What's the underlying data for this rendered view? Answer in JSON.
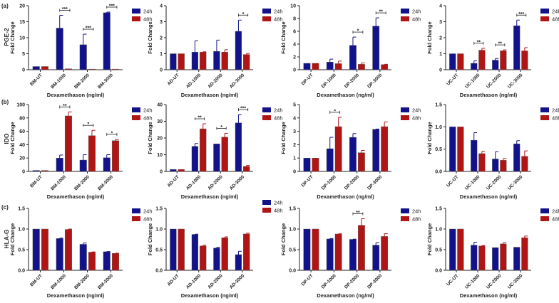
{
  "rows": [
    {
      "panel_label": "(a)",
      "marker": "PGE-2"
    },
    {
      "panel_label": "(b)",
      "marker": "IDO"
    },
    {
      "panel_label": "(c)",
      "marker": "HLA-G"
    }
  ],
  "colors": {
    "24h": "#12128a",
    "48h": "#b01515"
  },
  "chart_data": [
    {
      "type": "bar",
      "row": 0,
      "ylabel": "Fold Change",
      "xlabel": "Dexamethason (ng/ml)",
      "categories": [
        "BM-UT",
        "BM-1000",
        "BM-2000",
        "BM-3000"
      ],
      "ylim": [
        0,
        20
      ],
      "yticks": [
        "0",
        "5",
        "10",
        "15",
        "20"
      ],
      "series": [
        {
          "name": "24h",
          "values": [
            1,
            13,
            7.8,
            17.8
          ],
          "errors": [
            0,
            4,
            3.3,
            0.2
          ]
        },
        {
          "name": "48h",
          "values": [
            1,
            0.3,
            0.2,
            0.2
          ],
          "errors": [
            0,
            0,
            0,
            0
          ]
        }
      ],
      "significance": [
        {
          "category": "BM-1000",
          "label": "***"
        },
        {
          "category": "BM-2000",
          "label": "***"
        },
        {
          "category": "BM-3000",
          "label": "***"
        }
      ]
    },
    {
      "type": "bar",
      "row": 0,
      "ylabel": "Fold Change",
      "xlabel": "Dexamethason (ng/ml)",
      "categories": [
        "AD-UT",
        "AD-1000",
        "AD-2000",
        "AD-3000"
      ],
      "ylim": [
        0,
        4
      ],
      "yticks": [
        "0",
        "1",
        "2",
        "3",
        "4"
      ],
      "series": [
        {
          "name": "24h",
          "values": [
            1,
            1.1,
            1.15,
            2.4
          ],
          "errors": [
            0,
            0.7,
            0.7,
            0.7
          ]
        },
        {
          "name": "48h",
          "values": [
            1,
            1.1,
            1.1,
            0.95
          ],
          "errors": [
            0,
            0.02,
            0.15,
            0.07
          ]
        }
      ],
      "significance": [
        {
          "category": "AD-3000",
          "label": "*"
        }
      ]
    },
    {
      "type": "bar",
      "row": 0,
      "ylabel": "Fold Change",
      "xlabel": "Dexamethason (ng/ml)",
      "categories": [
        "DP-UT",
        "DP-1000",
        "DP-2000",
        "DP-3000"
      ],
      "ylim": [
        0,
        10
      ],
      "yticks": [
        "0",
        "2",
        "4",
        "6",
        "8",
        "10"
      ],
      "series": [
        {
          "name": "24h",
          "values": [
            1,
            1.2,
            3.8,
            6.8
          ],
          "errors": [
            0,
            0.45,
            1.3,
            1.3
          ]
        },
        {
          "name": "48h",
          "values": [
            1,
            0.95,
            0.85,
            0.8
          ],
          "errors": [
            0,
            0.4,
            0.2,
            0.05
          ]
        }
      ],
      "significance": [
        {
          "category": "DP-2000",
          "label": "*"
        },
        {
          "category": "DP-3000",
          "label": "**"
        }
      ]
    },
    {
      "type": "bar",
      "row": 0,
      "ylabel": "Fold Change",
      "xlabel": "Dexamethason (ng/ml)",
      "categories": [
        "UC-UT",
        "UC-1000",
        "UC-2000",
        "UC-3000"
      ],
      "ylim": [
        0,
        4
      ],
      "yticks": [
        "0",
        "1",
        "2",
        "3",
        "4"
      ],
      "series": [
        {
          "name": "24h",
          "values": [
            1,
            0.4,
            0.6,
            2.75
          ],
          "errors": [
            0,
            0.15,
            0.1,
            0.35
          ]
        },
        {
          "name": "48h",
          "values": [
            1,
            1.22,
            1.18,
            1.18
          ],
          "errors": [
            0,
            0.12,
            0.06,
            0.2
          ]
        }
      ],
      "significance": [
        {
          "category": "UC-1000",
          "label": "**"
        },
        {
          "category": "UC-2000",
          "label": "**"
        },
        {
          "category": "UC-3000",
          "label": "***"
        }
      ]
    },
    {
      "type": "bar",
      "row": 1,
      "ylabel": "Fold Change",
      "xlabel": "Dexamethason (ng/ml)",
      "categories": [
        "BM-UT",
        "BM-1000",
        "BM-2000",
        "BM-3000"
      ],
      "ylim": [
        0,
        100
      ],
      "yticks": [
        "0",
        "20",
        "40",
        "60",
        "80",
        "100"
      ],
      "series": [
        {
          "name": "24h",
          "values": [
            1.5,
            20,
            17,
            20.5
          ],
          "errors": [
            0,
            4.5,
            8,
            4.5
          ]
        },
        {
          "name": "48h",
          "values": [
            1.5,
            83,
            53.5,
            46
          ],
          "errors": [
            0,
            6,
            8,
            2
          ]
        }
      ],
      "significance": [
        {
          "category": "BM-1000",
          "label": "**"
        },
        {
          "category": "BM-2000",
          "label": "*"
        },
        {
          "category": "BM-3000",
          "label": "*"
        }
      ]
    },
    {
      "type": "bar",
      "row": 1,
      "ylabel": "Fold Change",
      "xlabel": "Dexamethason (ng/ml)",
      "categories": [
        "AD-UT",
        "AD-1000",
        "AD-2000",
        "AD-3000"
      ],
      "ylim": [
        0,
        40
      ],
      "yticks": [
        "0",
        "10",
        "20",
        "30",
        "40"
      ],
      "series": [
        {
          "name": "24h",
          "values": [
            1.2,
            15,
            16.5,
            29
          ],
          "errors": [
            0,
            1.7,
            0,
            5
          ]
        },
        {
          "name": "48h",
          "values": [
            1.2,
            25.5,
            20.5,
            3
          ],
          "errors": [
            0,
            3,
            2.3,
            0.6
          ]
        }
      ],
      "significance": [
        {
          "category": "AD-1000",
          "label": "**"
        },
        {
          "category": "AD-2000",
          "label": "*"
        },
        {
          "category": "AD-3000",
          "label": "***"
        }
      ]
    },
    {
      "type": "bar",
      "row": 1,
      "ylabel": "Fold Change",
      "xlabel": "Dexamethason (ng/ml)",
      "categories": [
        "DP-UT",
        "DP-1000",
        "DP-2000",
        "DP-3000"
      ],
      "ylim": [
        0,
        5
      ],
      "yticks": [
        "0",
        "1",
        "2",
        "3",
        "4",
        "5"
      ],
      "series": [
        {
          "name": "24h",
          "values": [
            1,
            1.7,
            2.55,
            3.15
          ],
          "errors": [
            0,
            0.85,
            0.28,
            0.02
          ]
        },
        {
          "name": "48h",
          "values": [
            1,
            3.35,
            1.4,
            3.35
          ],
          "errors": [
            0,
            0.7,
            0.17,
            0.35
          ]
        }
      ],
      "significance": [
        {
          "category": "DP-1000",
          "label": "*"
        }
      ]
    },
    {
      "type": "bar",
      "row": 1,
      "ylabel": "Fold Change",
      "xlabel": "Dexamethason (ng/ml)",
      "categories": [
        "UC-UT",
        "UC-1000",
        "UC-2000",
        "UC-3000"
      ],
      "ylim": [
        0,
        1.5
      ],
      "yticks": [
        "0.0",
        "0.5",
        "1.0",
        "1.5"
      ],
      "series": [
        {
          "name": "24h",
          "values": [
            1,
            0.7,
            0.28,
            0.62
          ],
          "errors": [
            0,
            0.17,
            0.16,
            0.07
          ]
        },
        {
          "name": "48h",
          "values": [
            1,
            0.4,
            0.25,
            0.34
          ],
          "errors": [
            0,
            0.05,
            0.04,
            0.12
          ]
        }
      ],
      "significance": []
    },
    {
      "type": "bar",
      "row": 2,
      "ylabel": "Fold Change",
      "xlabel": "Dexamethason (ng/ml)",
      "categories": [
        "BM-UT",
        "BM-1000",
        "BM-2000",
        "BM-3000"
      ],
      "ylim": [
        0,
        1.5
      ],
      "yticks": [
        "0.0",
        "0.5",
        "1.0",
        "1.5"
      ],
      "series": [
        {
          "name": "24h",
          "values": [
            1,
            0.77,
            0.63,
            0.45
          ],
          "errors": [
            0,
            0.01,
            0.03,
            0.005
          ]
        },
        {
          "name": "48h",
          "values": [
            1,
            0.99,
            0.44,
            0.41
          ],
          "errors": [
            0,
            0.01,
            0.005,
            0.005
          ]
        }
      ],
      "significance": []
    },
    {
      "type": "bar",
      "row": 2,
      "ylabel": "Fold Change",
      "xlabel": "Dexamethason (ng/ml)",
      "categories": [
        "AD-UT",
        "AD-1000",
        "AD-2000",
        "AD-3000"
      ],
      "ylim": [
        0,
        1.5
      ],
      "yticks": [
        "0.0",
        "0.5",
        "1.0",
        "1.5"
      ],
      "series": [
        {
          "name": "24h",
          "values": [
            1,
            0.87,
            0.54,
            0.38
          ],
          "errors": [
            0,
            0.005,
            0.02,
            0.08
          ]
        },
        {
          "name": "48h",
          "values": [
            1,
            0.59,
            0.79,
            0.88
          ],
          "errors": [
            0,
            0.02,
            0.02,
            0.02
          ]
        }
      ],
      "significance": []
    },
    {
      "type": "bar",
      "row": 2,
      "ylabel": "Fold Change",
      "xlabel": "Dexamethason (ng/ml)",
      "categories": [
        "DP-UT",
        "DP-1000",
        "DP-2000",
        "DP-3000"
      ],
      "ylim": [
        0,
        1.5
      ],
      "yticks": [
        "0.0",
        "0.5",
        "1.0",
        "1.5"
      ],
      "series": [
        {
          "name": "24h",
          "values": [
            1,
            0.76,
            0.75,
            0.61
          ],
          "errors": [
            0,
            0.01,
            0.005,
            0.06
          ]
        },
        {
          "name": "48h",
          "values": [
            1,
            0.88,
            1.09,
            0.82
          ],
          "errors": [
            0,
            0.005,
            0.16,
            0.07
          ]
        }
      ],
      "significance": [
        {
          "category": "DP-2000",
          "label": "**"
        }
      ]
    },
    {
      "type": "bar",
      "row": 2,
      "ylabel": "Fold Change",
      "xlabel": "Dexamethason (ng/ml)",
      "categories": [
        "UC-UT",
        "UC-1000",
        "UC-2000",
        "UC-3000"
      ],
      "ylim": [
        0,
        1.5
      ],
      "yticks": [
        "0.0",
        "0.5",
        "1.0",
        "1.5"
      ],
      "series": [
        {
          "name": "24h",
          "values": [
            1,
            0.61,
            0.55,
            0.56
          ],
          "errors": [
            0,
            0.07,
            0,
            0
          ]
        },
        {
          "name": "48h",
          "values": [
            1,
            0.59,
            0.64,
            0.79
          ],
          "errors": [
            0,
            0.01,
            0.03,
            0.04
          ]
        }
      ],
      "significance": []
    }
  ]
}
